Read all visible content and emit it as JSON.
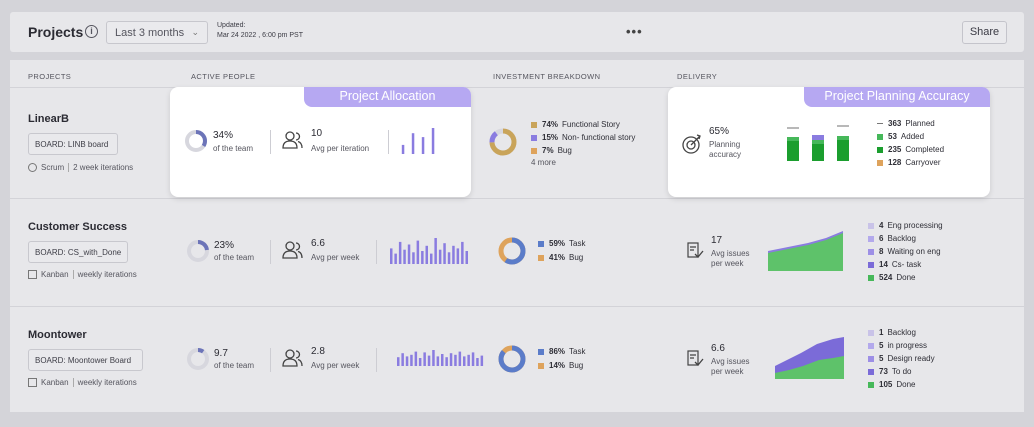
{
  "header": {
    "title": "Projects",
    "range": "Last 3 months",
    "updated_label": "Updated:",
    "updated_value": "Mar 24 2022 , 6:00 pm PST",
    "more": "•••",
    "share": "Share"
  },
  "columns": {
    "projects": "PROJECTS",
    "active_people": "ACTIVE PEOPLE",
    "investment": "INVESTMENT BREAKDOWN",
    "delivery": "DELIVERY"
  },
  "colors": {
    "accent": "#b6a8f2",
    "purple": "#8a7ce0",
    "gold": "#c9a45a",
    "blue": "#5b7cc9",
    "green": "#46b85a",
    "dark_green": "#1b9e2e",
    "orange": "#dea35c"
  },
  "cards": {
    "allocation": "Project Allocation",
    "accuracy": "Project Planning Accuracy"
  },
  "projects": [
    {
      "name": "LinearB",
      "board": "BOARD: LINB board",
      "method": "Scrum",
      "cadence": "2 week iterations",
      "people_pct": "34%",
      "people_pct_value": 34,
      "people_sub": "of the team",
      "avg": "10",
      "avg_label": "Avg per iteration",
      "bars": [
        0.35,
        0.8,
        0.65,
        1.0
      ],
      "investment": [
        {
          "pct": "74%",
          "label": "Functional Story",
          "value": 74
        },
        {
          "pct": "15%",
          "label": "Non- functional story",
          "value": 15
        },
        {
          "pct": "7%",
          "label": "Bug",
          "value": 7
        }
      ],
      "investment_more": "4 more",
      "delivery_pct": "65%",
      "delivery_label1": "Planning",
      "delivery_label2": "accuracy",
      "legend": [
        {
          "num": "363",
          "label": "Planned"
        },
        {
          "num": "53",
          "label": "Added"
        },
        {
          "num": "235",
          "label": "Completed"
        },
        {
          "num": "128",
          "label": "Carryover"
        }
      ]
    },
    {
      "name": "Customer Success",
      "board": "BOARD: CS_with_Done",
      "method": "Kanban",
      "cadence": "weekly iterations",
      "people_pct": "23%",
      "people_pct_value": 23,
      "people_sub": "of the team",
      "avg": "6.6",
      "avg_label": "Avg per week",
      "bars": [
        0.6,
        0.4,
        0.85,
        0.55,
        0.75,
        0.45,
        0.9,
        0.5,
        0.7,
        0.4,
        1.0,
        0.55,
        0.8,
        0.45,
        0.7,
        0.6,
        0.85,
        0.5
      ],
      "investment": [
        {
          "pct": "59%",
          "label": "Task",
          "value": 59
        },
        {
          "pct": "41%",
          "label": "Bug",
          "value": 41
        }
      ],
      "delivery_num": "17",
      "delivery_label1": "Avg issues",
      "delivery_label2": "per week",
      "legend": [
        {
          "num": "4",
          "label": "Eng processing"
        },
        {
          "num": "6",
          "label": "Backlog"
        },
        {
          "num": "8",
          "label": "Waiting on eng"
        },
        {
          "num": "14",
          "label": "Cs- task"
        },
        {
          "num": "524",
          "label": "Done"
        }
      ]
    },
    {
      "name": "Moontower",
      "board": "BOARD: Moontower Board",
      "method": "Kanban",
      "cadence": "weekly iterations",
      "people_pct": "9.7",
      "people_pct_value": 9.7,
      "people_sub": "of the team",
      "avg": "2.8",
      "avg_label": "Avg per week",
      "bars": [
        0.55,
        0.8,
        0.6,
        0.7,
        0.9,
        0.5,
        0.85,
        0.65,
        1.0,
        0.6,
        0.75,
        0.55,
        0.8,
        0.7,
        0.9,
        0.6,
        0.7,
        0.85,
        0.5,
        0.65
      ],
      "investment": [
        {
          "pct": "86%",
          "label": "Task",
          "value": 86
        },
        {
          "pct": "14%",
          "label": "Bug",
          "value": 14
        }
      ],
      "delivery_num": "6.6",
      "delivery_label1": "Avg issues",
      "delivery_label2": "per week",
      "legend": [
        {
          "num": "1",
          "label": "Backlog"
        },
        {
          "num": "5",
          "label": "in progress"
        },
        {
          "num": "5",
          "label": "Design ready"
        },
        {
          "num": "73",
          "label": "To do"
        },
        {
          "num": "105",
          "label": "Done"
        }
      ]
    }
  ]
}
